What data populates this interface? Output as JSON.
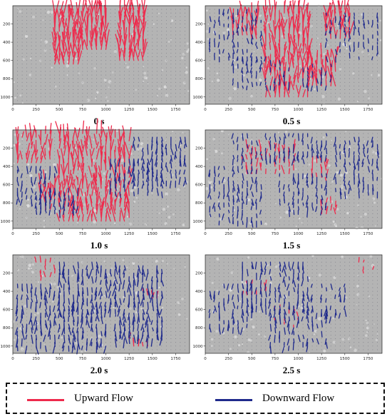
{
  "colors": {
    "upward": "#ee2a4c",
    "downward": "#1f2a8c",
    "background": "#b4b4b4",
    "dots": "#3a3a50"
  },
  "legend": {
    "upward_label": "Upward Flow",
    "downward_label": "Downward Flow"
  },
  "chart_data": [
    {
      "type": "quiver",
      "caption": "0 s",
      "xticks": [
        0,
        250,
        500,
        750,
        1000,
        1250,
        1500,
        1750
      ],
      "yticks": [
        200,
        400,
        600,
        800,
        1000
      ],
      "xlim": [
        0,
        1900
      ],
      "ylim": [
        1080,
        0
      ],
      "series": [
        {
          "name": "Upward Flow",
          "regions": [
            [
              420,
              80,
              720,
              650
            ],
            [
              750,
              40,
              1000,
              500
            ],
            [
              1140,
              40,
              1440,
              600
            ]
          ],
          "density": 0.95,
          "mean_length": 140
        },
        {
          "name": "Downward Flow",
          "regions": [],
          "density": 0,
          "mean_length": 0
        }
      ]
    },
    {
      "type": "quiver",
      "caption": "0.5 s",
      "xticks": [
        0,
        250,
        500,
        750,
        1000,
        1250,
        1500,
        1750
      ],
      "yticks": [
        200,
        400,
        600,
        800,
        1000
      ],
      "xlim": [
        0,
        1900
      ],
      "ylim": [
        1080,
        0
      ],
      "series": [
        {
          "name": "Upward Flow",
          "regions": [
            [
              620,
              40,
              1100,
              1020
            ],
            [
              1100,
              560,
              1400,
              900
            ],
            [
              1300,
              40,
              1550,
              360
            ],
            [
              300,
              80,
              550,
              380
            ]
          ],
          "density": 0.7,
          "mean_length": 130
        },
        {
          "name": "Downward Flow",
          "regions": [
            [
              40,
              40,
              620,
              560
            ],
            [
              1300,
              60,
              1850,
              580
            ],
            [
              300,
              560,
              900,
              900
            ],
            [
              1050,
              640,
              1350,
              880
            ]
          ],
          "density": 0.45,
          "mean_length": 45
        }
      ]
    },
    {
      "type": "quiver",
      "caption": "1.0 s",
      "xticks": [
        0,
        250,
        500,
        750,
        1000,
        1250,
        1500,
        1750
      ],
      "yticks": [
        200,
        400,
        600,
        800,
        1000
      ],
      "xlim": [
        0,
        1900
      ],
      "ylim": [
        1080,
        0
      ],
      "series": [
        {
          "name": "Upward Flow",
          "regions": [
            [
              40,
              40,
              400,
              360
            ],
            [
              500,
              40,
              1250,
              1000
            ],
            [
              300,
              600,
              500,
              900
            ]
          ],
          "density": 0.6,
          "mean_length": 120
        },
        {
          "name": "Downward Flow",
          "regions": [
            [
              1300,
              60,
              1850,
              560
            ],
            [
              40,
              400,
              450,
              820
            ],
            [
              250,
              640,
              700,
              900
            ],
            [
              1050,
              300,
              1600,
              700
            ]
          ],
          "density": 0.55,
          "mean_length": 60
        }
      ]
    },
    {
      "type": "quiver",
      "caption": "1.5 s",
      "xticks": [
        0,
        250,
        500,
        750,
        1000,
        1250,
        1500,
        1750
      ],
      "yticks": [
        200,
        400,
        600,
        800,
        1000
      ],
      "xlim": [
        0,
        1900
      ],
      "ylim": [
        1080,
        0
      ],
      "series": [
        {
          "name": "Upward Flow",
          "regions": [
            [
              380,
              200,
              950,
              480
            ],
            [
              1150,
              360,
              1350,
              560
            ],
            [
              1250,
              800,
              1400,
              950
            ]
          ],
          "density": 0.5,
          "mean_length": 75
        },
        {
          "name": "Downward Flow",
          "regions": [
            [
              300,
              40,
              1300,
              320
            ],
            [
              1400,
              60,
              1850,
              700
            ],
            [
              40,
              400,
              600,
              1020
            ],
            [
              800,
              450,
              1300,
              900
            ]
          ],
          "density": 0.55,
          "mean_length": 55
        }
      ]
    },
    {
      "type": "quiver",
      "caption": "2.0 s",
      "xticks": [
        0,
        250,
        500,
        750,
        1000,
        1250,
        1500,
        1750
      ],
      "yticks": [
        200,
        400,
        600,
        800,
        1000
      ],
      "xlim": [
        0,
        1900
      ],
      "ylim": [
        1080,
        0
      ],
      "series": [
        {
          "name": "Upward Flow",
          "regions": [
            [
              250,
              60,
              450,
              300
            ],
            [
              1400,
              400,
              1550,
              520
            ],
            [
              1250,
              900,
              1450,
              1020
            ]
          ],
          "density": 0.35,
          "mean_length": 55
        },
        {
          "name": "Downward Flow",
          "regions": [
            [
              500,
              60,
              1100,
              600
            ],
            [
              40,
              300,
              450,
              1020
            ],
            [
              500,
              500,
              1000,
              1020
            ],
            [
              1100,
              120,
              1600,
              920
            ]
          ],
          "density": 0.6,
          "mean_length": 75
        }
      ]
    },
    {
      "type": "quiver",
      "caption": "2.5 s",
      "xticks": [
        0,
        250,
        500,
        750,
        1000,
        1250,
        1500,
        1750
      ],
      "yticks": [
        200,
        400,
        600,
        800,
        1000
      ],
      "xlim": [
        0,
        1900
      ],
      "ylim": [
        1080,
        0
      ],
      "series": [
        {
          "name": "Upward Flow",
          "regions": [
            [
              300,
              300,
              650,
              500
            ],
            [
              750,
              600,
              1000,
              800
            ],
            [
              1650,
              60,
              1800,
              200
            ]
          ],
          "density": 0.3,
          "mean_length": 45
        },
        {
          "name": "Downward Flow",
          "regions": [
            [
              400,
              60,
              1100,
              600
            ],
            [
              40,
              300,
              500,
              800
            ],
            [
              1100,
              300,
              1500,
              700
            ],
            [
              700,
              560,
              1300,
              1020
            ]
          ],
          "density": 0.5,
          "mean_length": 60
        }
      ]
    }
  ]
}
